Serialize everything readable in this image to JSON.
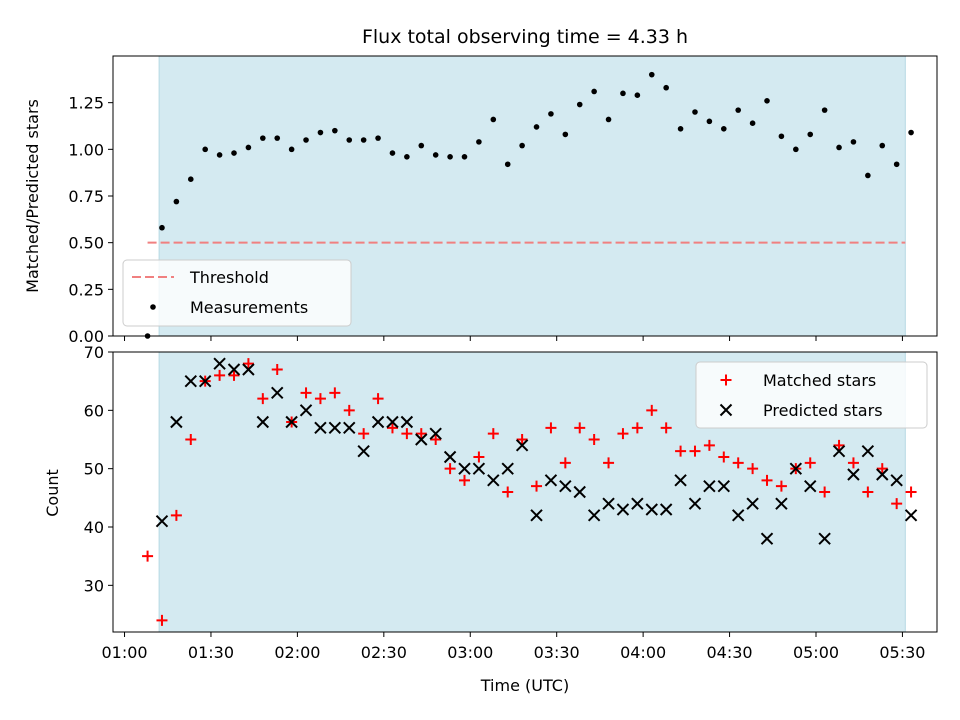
{
  "chart_data": [
    {
      "type": "scatter",
      "title": "Flux total observing time = 4.33 h",
      "xlabel": "",
      "ylabel": "Matched/Predicted stars",
      "ylim": [
        0,
        1.5
      ],
      "yticks": [
        "0.00",
        "0.25",
        "0.50",
        "0.75",
        "1.00",
        "1.25"
      ],
      "legend_position": "lower-left",
      "shaded_interval": [
        "01:12",
        "05:31"
      ],
      "threshold": {
        "name": "Threshold",
        "value": 0.5,
        "x_range": [
          "01:08",
          "05:31"
        ],
        "color": "#f08080"
      },
      "series": [
        {
          "name": "Measurements",
          "color": "#000000",
          "points": [
            [
              "01:08",
              0.0
            ],
            [
              "01:13",
              0.58
            ],
            [
              "01:18",
              0.72
            ],
            [
              "01:23",
              0.84
            ],
            [
              "01:28",
              1.0
            ],
            [
              "01:33",
              0.97
            ],
            [
              "01:38",
              0.98
            ],
            [
              "01:43",
              1.01
            ],
            [
              "01:48",
              1.06
            ],
            [
              "01:53",
              1.06
            ],
            [
              "01:58",
              1.0
            ],
            [
              "02:03",
              1.05
            ],
            [
              "02:08",
              1.09
            ],
            [
              "02:13",
              1.1
            ],
            [
              "02:18",
              1.05
            ],
            [
              "02:23",
              1.05
            ],
            [
              "02:28",
              1.06
            ],
            [
              "02:33",
              0.98
            ],
            [
              "02:38",
              0.96
            ],
            [
              "02:43",
              1.02
            ],
            [
              "02:48",
              0.97
            ],
            [
              "02:53",
              0.96
            ],
            [
              "02:58",
              0.96
            ],
            [
              "03:03",
              1.04
            ],
            [
              "03:08",
              1.16
            ],
            [
              "03:13",
              0.92
            ],
            [
              "03:18",
              1.02
            ],
            [
              "03:23",
              1.12
            ],
            [
              "03:28",
              1.19
            ],
            [
              "03:33",
              1.08
            ],
            [
              "03:38",
              1.24
            ],
            [
              "03:43",
              1.31
            ],
            [
              "03:48",
              1.16
            ],
            [
              "03:53",
              1.3
            ],
            [
              "03:58",
              1.29
            ],
            [
              "04:03",
              1.4
            ],
            [
              "04:08",
              1.33
            ],
            [
              "04:13",
              1.11
            ],
            [
              "04:18",
              1.2
            ],
            [
              "04:23",
              1.15
            ],
            [
              "04:28",
              1.11
            ],
            [
              "04:33",
              1.21
            ],
            [
              "04:38",
              1.14
            ],
            [
              "04:43",
              1.26
            ],
            [
              "04:48",
              1.07
            ],
            [
              "04:53",
              1.0
            ],
            [
              "04:58",
              1.08
            ],
            [
              "05:03",
              1.21
            ],
            [
              "05:08",
              1.01
            ],
            [
              "05:13",
              1.04
            ],
            [
              "05:18",
              0.86
            ],
            [
              "05:23",
              1.02
            ],
            [
              "05:28",
              0.92
            ],
            [
              "05:33",
              1.09
            ]
          ]
        }
      ]
    },
    {
      "type": "scatter",
      "xlabel": "Time (UTC)",
      "ylabel": "Count",
      "ylim": [
        22,
        70
      ],
      "xlim": [
        "00:56",
        "05:42"
      ],
      "xticks": [
        "01:00",
        "01:30",
        "02:00",
        "02:30",
        "03:00",
        "03:30",
        "04:00",
        "04:30",
        "05:00",
        "05:30"
      ],
      "yticks": [
        "30",
        "40",
        "50",
        "60",
        "70"
      ],
      "legend_position": "top-right",
      "shaded_interval": [
        "01:12",
        "05:31"
      ],
      "series": [
        {
          "name": "Matched stars",
          "marker": "+",
          "color": "#ff0000",
          "points": [
            [
              "01:08",
              35
            ],
            [
              "01:13",
              24
            ],
            [
              "01:18",
              42
            ],
            [
              "01:23",
              55
            ],
            [
              "01:28",
              65
            ],
            [
              "01:33",
              66
            ],
            [
              "01:38",
              66
            ],
            [
              "01:43",
              68
            ],
            [
              "01:48",
              62
            ],
            [
              "01:53",
              67
            ],
            [
              "01:58",
              58
            ],
            [
              "02:03",
              63
            ],
            [
              "02:08",
              62
            ],
            [
              "02:13",
              63
            ],
            [
              "02:18",
              60
            ],
            [
              "02:23",
              56
            ],
            [
              "02:28",
              62
            ],
            [
              "02:33",
              57
            ],
            [
              "02:38",
              56
            ],
            [
              "02:43",
              56
            ],
            [
              "02:48",
              55
            ],
            [
              "02:53",
              50
            ],
            [
              "02:58",
              48
            ],
            [
              "03:03",
              52
            ],
            [
              "03:08",
              56
            ],
            [
              "03:13",
              46
            ],
            [
              "03:18",
              55
            ],
            [
              "03:23",
              47
            ],
            [
              "03:28",
              57
            ],
            [
              "03:33",
              51
            ],
            [
              "03:38",
              57
            ],
            [
              "03:43",
              55
            ],
            [
              "03:48",
              51
            ],
            [
              "03:53",
              56
            ],
            [
              "03:58",
              57
            ],
            [
              "04:03",
              60
            ],
            [
              "04:08",
              57
            ],
            [
              "04:13",
              53
            ],
            [
              "04:18",
              53
            ],
            [
              "04:23",
              54
            ],
            [
              "04:28",
              52
            ],
            [
              "04:33",
              51
            ],
            [
              "04:38",
              50
            ],
            [
              "04:43",
              48
            ],
            [
              "04:48",
              47
            ],
            [
              "04:53",
              50
            ],
            [
              "04:58",
              51
            ],
            [
              "05:03",
              46
            ],
            [
              "05:08",
              54
            ],
            [
              "05:13",
              51
            ],
            [
              "05:18",
              46
            ],
            [
              "05:23",
              50
            ],
            [
              "05:28",
              44
            ],
            [
              "05:33",
              46
            ]
          ]
        },
        {
          "name": "Predicted stars",
          "marker": "x",
          "color": "#000000",
          "points": [
            [
              "01:13",
              41
            ],
            [
              "01:18",
              58
            ],
            [
              "01:23",
              65
            ],
            [
              "01:28",
              65
            ],
            [
              "01:33",
              68
            ],
            [
              "01:38",
              67
            ],
            [
              "01:43",
              67
            ],
            [
              "01:48",
              58
            ],
            [
              "01:53",
              63
            ],
            [
              "01:58",
              58
            ],
            [
              "02:03",
              60
            ],
            [
              "02:08",
              57
            ],
            [
              "02:13",
              57
            ],
            [
              "02:18",
              57
            ],
            [
              "02:23",
              53
            ],
            [
              "02:28",
              58
            ],
            [
              "02:33",
              58
            ],
            [
              "02:38",
              58
            ],
            [
              "02:43",
              55
            ],
            [
              "02:48",
              56
            ],
            [
              "02:53",
              52
            ],
            [
              "02:58",
              50
            ],
            [
              "03:03",
              50
            ],
            [
              "03:08",
              48
            ],
            [
              "03:13",
              50
            ],
            [
              "03:18",
              54
            ],
            [
              "03:23",
              42
            ],
            [
              "03:28",
              48
            ],
            [
              "03:33",
              47
            ],
            [
              "03:38",
              46
            ],
            [
              "03:43",
              42
            ],
            [
              "03:48",
              44
            ],
            [
              "03:53",
              43
            ],
            [
              "03:58",
              44
            ],
            [
              "04:03",
              43
            ],
            [
              "04:08",
              43
            ],
            [
              "04:13",
              48
            ],
            [
              "04:18",
              44
            ],
            [
              "04:23",
              47
            ],
            [
              "04:28",
              47
            ],
            [
              "04:33",
              42
            ],
            [
              "04:38",
              44
            ],
            [
              "04:43",
              38
            ],
            [
              "04:48",
              44
            ],
            [
              "04:53",
              50
            ],
            [
              "04:58",
              47
            ],
            [
              "05:03",
              38
            ],
            [
              "05:08",
              53
            ],
            [
              "05:13",
              49
            ],
            [
              "05:18",
              53
            ],
            [
              "05:23",
              49
            ],
            [
              "05:28",
              48
            ],
            [
              "05:33",
              42
            ]
          ]
        }
      ]
    }
  ],
  "colors": {
    "shade": "#d4eaf1",
    "shade_edge": "#b7d9e4",
    "threshold": "#f08080",
    "matched": "#ff0000",
    "predicted": "#000000"
  }
}
